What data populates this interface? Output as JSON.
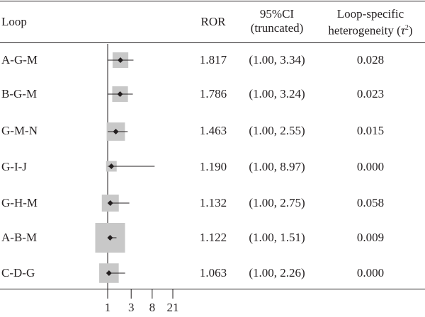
{
  "header": {
    "loop": "Loop",
    "ror": "ROR",
    "ci_line1": "95%CI",
    "ci_line2": "(truncated)",
    "het_line1": "Loop-specific",
    "het_line2_prefix": "heterogeneity (",
    "het_symbol": "τ",
    "het_sup": "2",
    "het_line2_suffix": ")"
  },
  "rows": [
    {
      "loop": "A-G-M",
      "ror": "1.817",
      "ci": "(1.00, 3.34)",
      "het": "0.028"
    },
    {
      "loop": "B-G-M",
      "ror": "1.786",
      "ci": "(1.00, 3.24)",
      "het": "0.023"
    },
    {
      "loop": "G-M-N",
      "ror": "1.463",
      "ci": "(1.00, 2.55)",
      "het": "0.015"
    },
    {
      "loop": "G-I-J",
      "ror": "1.190",
      "ci": "(1.00, 8.97)",
      "het": "0.000"
    },
    {
      "loop": "G-H-M",
      "ror": "1.132",
      "ci": "(1.00, 2.75)",
      "het": "0.058"
    },
    {
      "loop": "A-B-M",
      "ror": "1.122",
      "ci": "(1.00, 1.51)",
      "het": "0.009"
    },
    {
      "loop": "C-D-G",
      "ror": "1.063",
      "ci": "(1.00, 2.26)",
      "het": "0.000"
    }
  ],
  "chart_data": {
    "type": "forest",
    "scale": "log",
    "x_ticks": [
      1,
      3,
      8,
      21
    ],
    "x_tick_labels": [
      "1",
      "3",
      "8",
      "21"
    ],
    "reference_line": 1,
    "marker_color": "#231f20",
    "box_color": "#c8c8c8",
    "points": [
      {
        "label": "A-G-M",
        "ror": 1.817,
        "lower": 1.0,
        "upper": 3.34,
        "weight": 0.45
      },
      {
        "label": "B-G-M",
        "ror": 1.786,
        "lower": 1.0,
        "upper": 3.24,
        "weight": 0.45
      },
      {
        "label": "G-M-N",
        "ror": 1.463,
        "lower": 1.0,
        "upper": 2.55,
        "weight": 0.55
      },
      {
        "label": "G-I-J",
        "ror": 1.19,
        "lower": 1.0,
        "upper": 8.97,
        "weight": 0.25
      },
      {
        "label": "G-H-M",
        "ror": 1.132,
        "lower": 1.0,
        "upper": 2.75,
        "weight": 0.5
      },
      {
        "label": "A-B-M",
        "ror": 1.122,
        "lower": 1.0,
        "upper": 1.51,
        "weight": 1.0
      },
      {
        "label": "C-D-G",
        "ror": 1.063,
        "lower": 1.0,
        "upper": 2.26,
        "weight": 0.6
      }
    ]
  }
}
